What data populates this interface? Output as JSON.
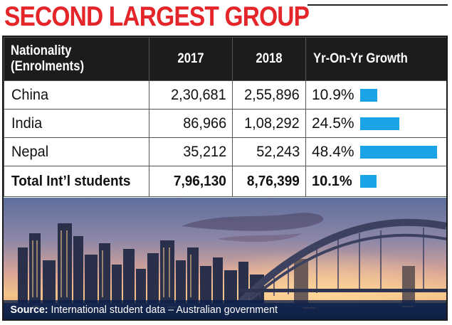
{
  "title": "SECOND LARGEST GROUP",
  "table": {
    "headers": {
      "nationality_line1": "Nationality",
      "nationality_line2": "(Enrolments)",
      "y2017": "2017",
      "y2018": "2018",
      "growth": "Yr-On-Yr Growth"
    },
    "rows": [
      {
        "name": "China",
        "v2017": "2,30,681",
        "v2018": "2,55,896",
        "growth": "10.9%"
      },
      {
        "name": "India",
        "v2017": "86,966",
        "v2018": "1,08,292",
        "growth": "24.5%"
      },
      {
        "name": "Nepal",
        "v2017": "35,212",
        "v2018": "52,243",
        "growth": "48.4%"
      }
    ],
    "total": {
      "name": "Total Int’l students",
      "v2017": "7,96,130",
      "v2018": "8,76,399",
      "growth": "10.1%"
    }
  },
  "chart_data": {
    "type": "table",
    "columns": [
      "Nationality (Enrolments)",
      "2017",
      "2018",
      "Yr-On-Yr Growth"
    ],
    "rows": [
      {
        "Nationality": "China",
        "2017": 230681,
        "2018": 255896,
        "growth_pct": 10.9
      },
      {
        "Nationality": "India",
        "2017": 86966,
        "2018": 108292,
        "growth_pct": 24.5
      },
      {
        "Nationality": "Nepal",
        "2017": 35212,
        "2018": 52243,
        "growth_pct": 48.4
      },
      {
        "Nationality": "Total Int’l students",
        "2017": 796130,
        "2018": 876399,
        "growth_pct": 10.1
      }
    ],
    "bar_max_pct": 48.4
  },
  "colors": {
    "title": "#e4262b",
    "header_bg": "#1c1c1c",
    "bar": "#1aa3e6",
    "source_bg": "#0c1e46"
  },
  "source": {
    "label": "Source:",
    "text": " International student data – Australian government"
  }
}
